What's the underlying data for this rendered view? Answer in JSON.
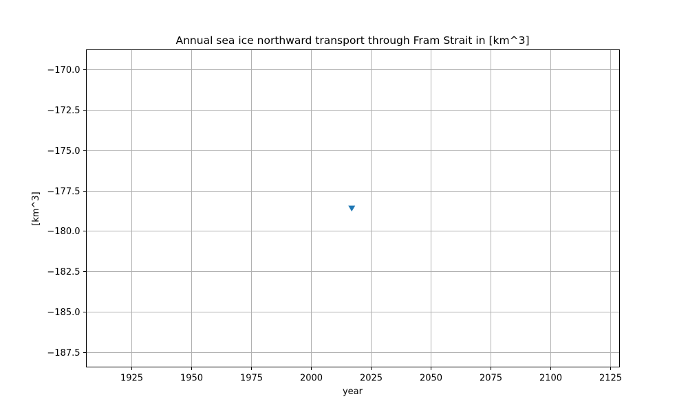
{
  "chart_data": {
    "type": "scatter",
    "title": "Annual sea ice northward transport through Fram Strait in [km^3]",
    "xlabel": "year",
    "ylabel": "[km^3]",
    "xlim": [
      1906.25,
      2128.75
    ],
    "ylim": [
      -188.4,
      -168.8
    ],
    "xticks": [
      1925,
      1950,
      1975,
      2000,
      2025,
      2050,
      2075,
      2100,
      2125
    ],
    "xtick_labels": [
      "1925",
      "1950",
      "1975",
      "2000",
      "2025",
      "2050",
      "2075",
      "2100",
      "2125"
    ],
    "yticks": [
      -170.0,
      -172.5,
      -175.0,
      -177.5,
      -180.0,
      -182.5,
      -185.0,
      -187.5
    ],
    "ytick_labels": [
      "−170.0",
      "−172.5",
      "−175.0",
      "−177.5",
      "−180.0",
      "−182.5",
      "−185.0",
      "−187.5"
    ],
    "grid": true,
    "series": [
      {
        "marker": "triangle-down",
        "color": "#1f77b4",
        "points": [
          {
            "x": 2017,
            "y": -178.6
          }
        ]
      }
    ]
  }
}
